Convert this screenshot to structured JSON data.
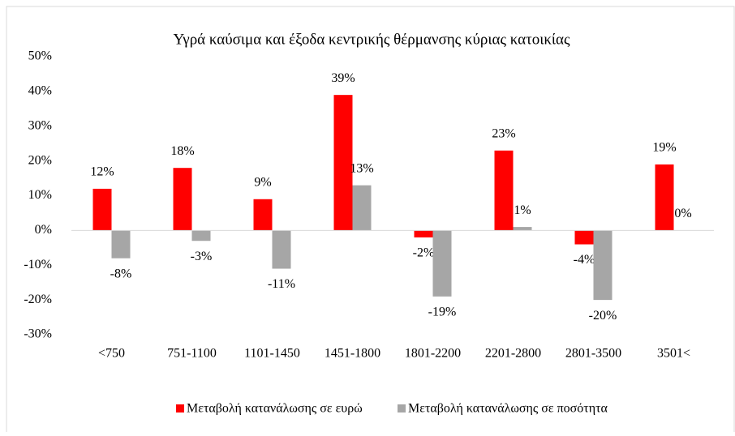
{
  "chart_data": {
    "type": "bar",
    "title": "Υγρά καύσιμα και έξοδα κεντρικής θέρμανσης κύριας κατοικίας",
    "categories": [
      "<750",
      "751-1100",
      "1101-1450",
      "1451-1800",
      "1801-2200",
      "2201-2800",
      "2801-3500",
      "3501<"
    ],
    "series": [
      {
        "name": "Μεταβολή κατανάλωσης σε ευρώ",
        "color": "#ff0000",
        "values": [
          12,
          18,
          9,
          39,
          -2,
          23,
          -4,
          19
        ],
        "value_labels": [
          "12%",
          "18%",
          "9%",
          "39%",
          "-2%",
          "23%",
          "-4%",
          "19%"
        ]
      },
      {
        "name": "Μεταβολή κατανάλωσης σε ποσότητα",
        "color": "#a6a6a6",
        "values": [
          -8,
          -3,
          -11,
          13,
          -19,
          1,
          -20,
          0
        ],
        "value_labels": [
          "-8%",
          "-3%",
          "-11%",
          "13%",
          "-19%",
          "1%",
          "-20%",
          "0%"
        ]
      }
    ],
    "ylim": [
      -30,
      50
    ],
    "yticks": [
      {
        "value": -30,
        "label": "-30%"
      },
      {
        "value": -20,
        "label": "-20%"
      },
      {
        "value": -10,
        "label": "-10%"
      },
      {
        "value": 0,
        "label": "0%"
      },
      {
        "value": 10,
        "label": "10%"
      },
      {
        "value": 20,
        "label": "20%"
      },
      {
        "value": 30,
        "label": "30%"
      },
      {
        "value": 40,
        "label": "40%"
      },
      {
        "value": 50,
        "label": "50%"
      }
    ],
    "grid": false,
    "legend": "bottom"
  }
}
